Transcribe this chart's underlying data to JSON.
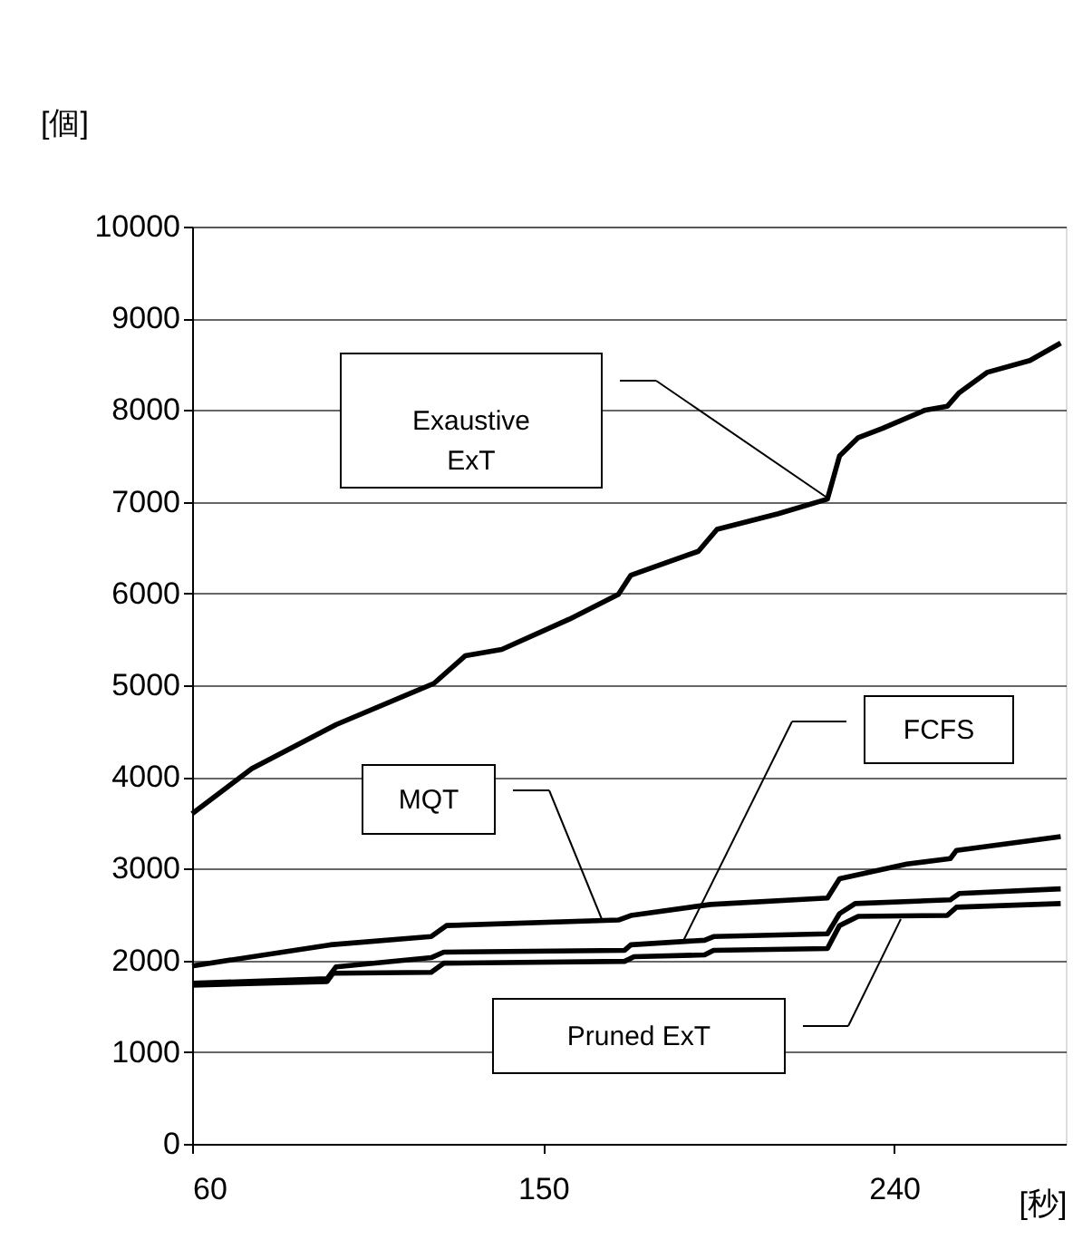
{
  "chart_data": {
    "type": "line",
    "xlabel": "[秒]",
    "ylabel": "[個]",
    "xlim": [
      60,
      284
    ],
    "xticks": [
      60,
      150,
      240
    ],
    "ylim": [
      0,
      10000
    ],
    "yticks": [
      0,
      1000,
      2000,
      3000,
      4000,
      5000,
      6000,
      7000,
      8000,
      9000,
      10000
    ],
    "grid": "y",
    "marker": "none",
    "line_style": "solid",
    "series": [
      {
        "color": "#000000",
        "x": [
          60,
          75.3,
          96.9,
          122,
          130,
          139.4,
          156.7,
          169.3,
          172.5,
          189.8,
          194.6,
          210.3,
          222.9,
          226,
          230.8,
          237,
          248,
          253.6,
          256.7,
          263.8,
          274.8,
          282.7
        ],
        "values": [
          3600,
          4090,
          4570,
          5020,
          5320,
          5390,
          5720,
          5990,
          6200,
          6460,
          6700,
          6870,
          7030,
          7500,
          7700,
          7800,
          8000,
          8040,
          8190,
          8410,
          8540,
          8730
        ]
      },
      {
        "color": "#000000",
        "x": [
          60,
          95.4,
          121.3,
          125.2,
          169.3,
          172.5,
          192.9,
          222.9,
          226,
          243.3,
          254.4,
          256,
          282.7
        ],
        "values": [
          1940,
          2170,
          2260,
          2380,
          2440,
          2490,
          2610,
          2680,
          2890,
          3050,
          3110,
          3200,
          3350
        ]
      },
      {
        "color": "#000000",
        "x": [
          60,
          94.6,
          96.9,
          121.3,
          124.5,
          170.9,
          172.5,
          191.4,
          193.7,
          222.9,
          226,
          230,
          254.4,
          256.7,
          282.7
        ],
        "values": [
          1750,
          1800,
          1930,
          2030,
          2090,
          2110,
          2170,
          2220,
          2260,
          2290,
          2510,
          2620,
          2660,
          2730,
          2780
        ]
      },
      {
        "color": "#000000",
        "x": [
          60,
          94.6,
          96.1,
          121.3,
          124.5,
          170.9,
          173.3,
          191.4,
          193.7,
          222.9,
          226,
          230.8,
          253.6,
          256,
          282.7
        ],
        "values": [
          1730,
          1770,
          1860,
          1870,
          1970,
          1990,
          2040,
          2060,
          2110,
          2130,
          2380,
          2480,
          2490,
          2580,
          2620
        ]
      }
    ],
    "annotations": [
      "Exaustive\nExT",
      "MQT",
      "FCFS",
      "Pruned ExT"
    ]
  }
}
